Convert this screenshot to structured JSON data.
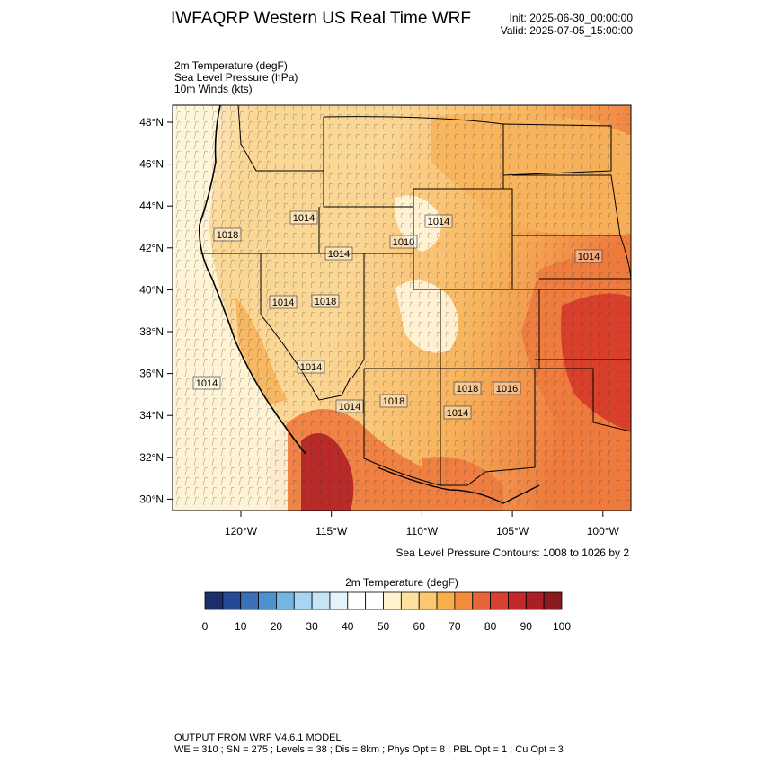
{
  "header": {
    "title": "IWFAQRP Western US Real Time WRF",
    "init": "Init: 2025-06-30_00:00:00",
    "valid": "Valid: 2025-07-05_15:00:00"
  },
  "fields": {
    "temperature": "2m Temperature   (degF)",
    "pressure": "Sea Level Pressure   (hPa)",
    "winds": "10m Winds   (kts)"
  },
  "map": {
    "lat_labels": [
      "48°N",
      "46°N",
      "44°N",
      "42°N",
      "40°N",
      "38°N",
      "36°N",
      "34°N",
      "32°N",
      "30°N"
    ],
    "lon_labels": [
      "120°W",
      "115°W",
      "110°W",
      "105°W",
      "100°W"
    ],
    "pressure_labels": [
      "1018",
      "1014",
      "1014",
      "1010",
      "1014",
      "1014",
      "1014",
      "1018",
      "1014",
      "1014",
      "1018",
      "1016",
      "1014",
      "1018",
      "1014"
    ],
    "contour_note": "Sea Level Pressure Contours: 1008 to 1026 by 2",
    "colors": {
      "cool": "#fff6dc",
      "mild": "#fbd796",
      "warm": "#f7b45c",
      "hot": "#ee7a3e",
      "very_hot": "#d53a2a",
      "extreme": "#b32026"
    }
  },
  "colorbar": {
    "title": "2m Temperature  (degF)",
    "colors": [
      "#1d2f6b",
      "#254996",
      "#3a6fba",
      "#4b92cf",
      "#74b6e2",
      "#a6d6f3",
      "#c5e5f6",
      "#e3f2fb",
      "#ffffff",
      "#ffffff",
      "#fff2cc",
      "#fde29f",
      "#fbc772",
      "#f9ae4c",
      "#f28c3c",
      "#e9633a",
      "#d84132",
      "#c22a2a",
      "#a91f25",
      "#8a1a1e"
    ],
    "labels": [
      "0",
      "10",
      "20",
      "30",
      "40",
      "50",
      "60",
      "70",
      "80",
      "90",
      "100"
    ]
  },
  "footer": {
    "line1": "OUTPUT FROM WRF V4.6.1 MODEL",
    "line2": "WE = 310 ; SN = 275 ; Levels = 38 ; Dis = 8km ; Phys Opt = 8 ; PBL Opt = 1 ; Cu Opt = 3"
  }
}
